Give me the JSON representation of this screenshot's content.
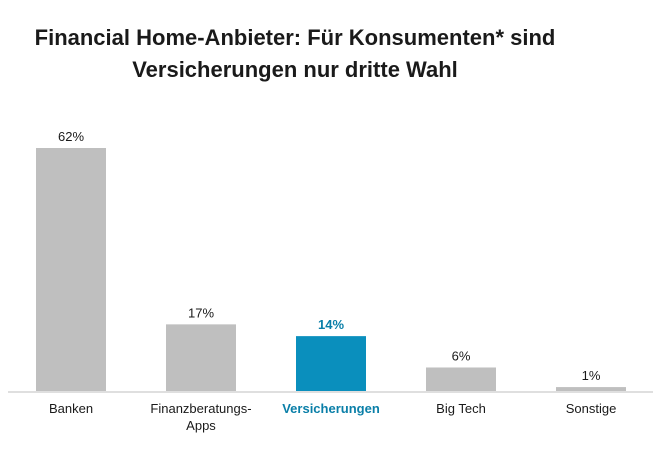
{
  "chart_data": {
    "type": "bar",
    "title_lines": [
      "Financial Home-Anbieter: Für Konsumenten* sind",
      "Versicherungen nur dritte Wahl"
    ],
    "categories": [
      [
        "Banken"
      ],
      [
        "Finanzberatungs-",
        "Apps"
      ],
      [
        "Versicherungen"
      ],
      [
        "Big Tech"
      ],
      [
        "Sonstige"
      ]
    ],
    "values": [
      62,
      17,
      14,
      6,
      1
    ],
    "value_labels": [
      "62%",
      "17%",
      "14%",
      "6%",
      "1%"
    ],
    "highlight_index": 2,
    "colors": {
      "bar": "#bfbfbf",
      "highlight": "#0a8fbd",
      "highlight_text": "#0a7fa8",
      "axis": "#bfbfbf"
    },
    "ylim": [
      0,
      62
    ],
    "grid": false,
    "legend": false
  }
}
